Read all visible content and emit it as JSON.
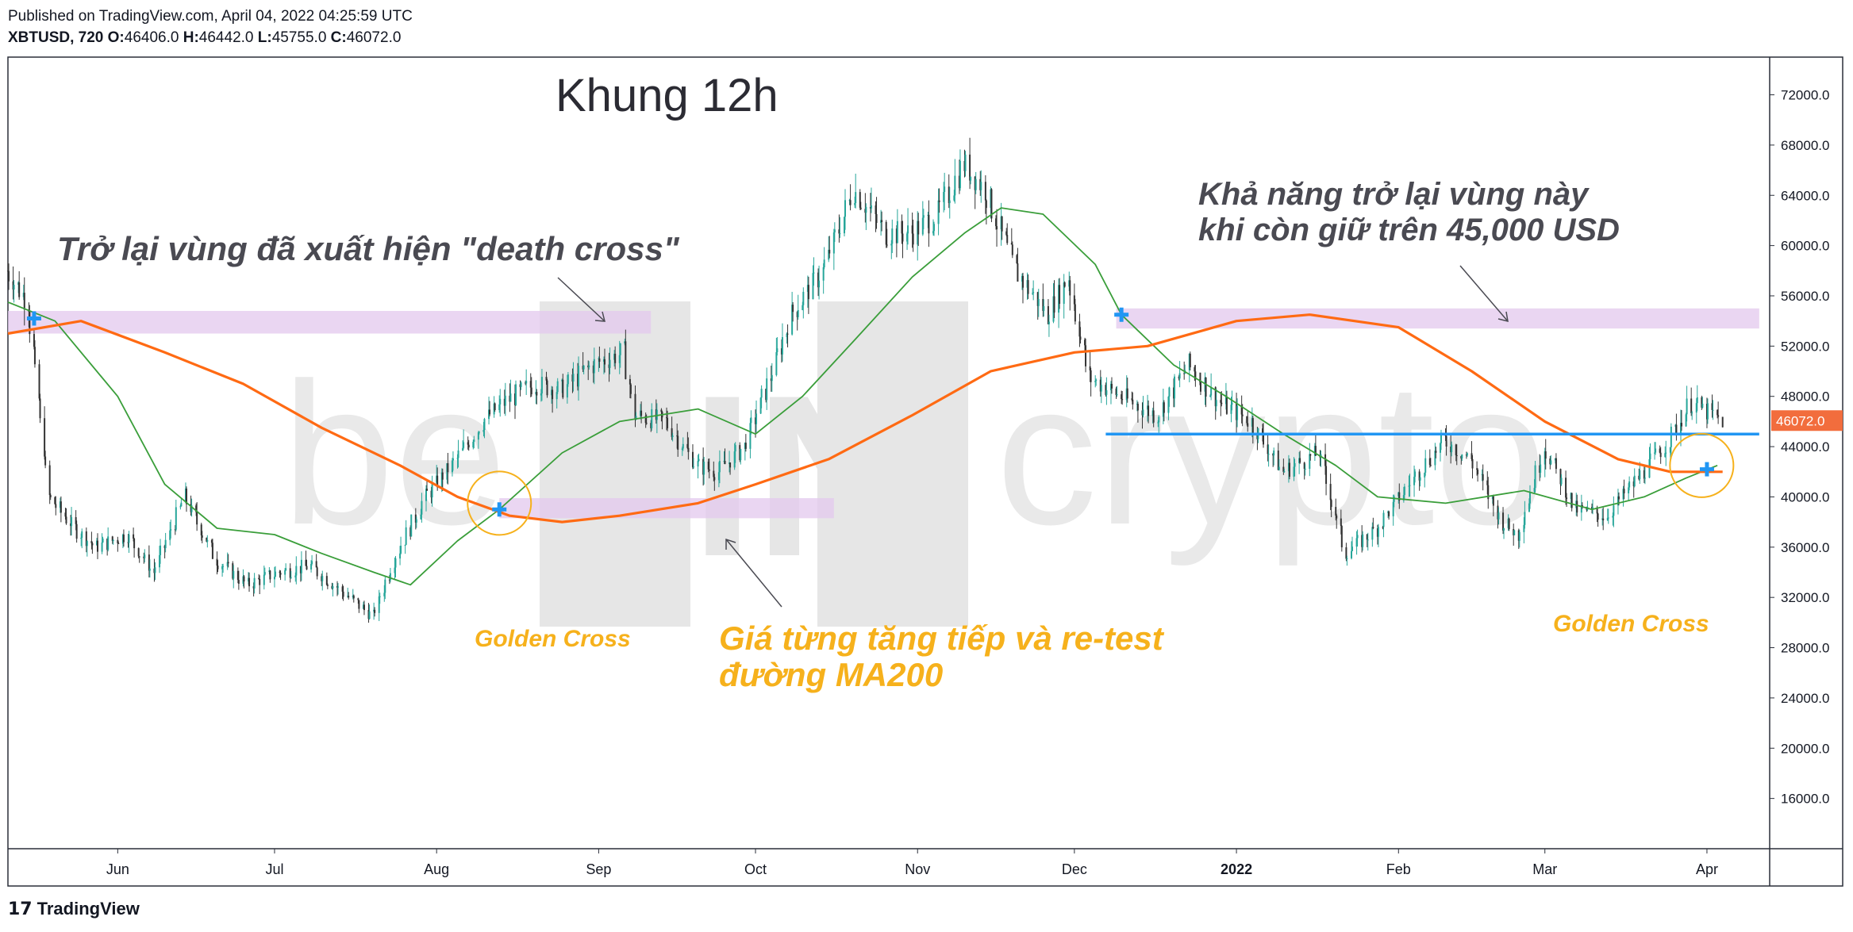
{
  "header": {
    "published": "Published on TradingView.com, April 04, 2022 04:25:59 UTC",
    "symbol": "XBTUSD, 720",
    "o_label": "O:",
    "o_value": "46406.0",
    "h_label": "H:",
    "h_value": "46442.0",
    "l_label": "L:",
    "l_value": "45755.0",
    "c_label": "C:",
    "c_value": "46072.0"
  },
  "footer": {
    "brand": "TradingView",
    "logo_icon": "tradingview-logo-icon"
  },
  "watermark": {
    "text_left": "be",
    "text_mid": "IN",
    "text_right": "crypto"
  },
  "colors": {
    "ma_fast": "#3a9e3a",
    "ma_slow": "#ff6a13",
    "level": "#2196f3",
    "zone": "#e3c8ee",
    "label_yellow": "#f6b11c",
    "up": "#26a69a",
    "down": "#333333",
    "price_badge": "#f26d3d",
    "marker": "#2196f3"
  },
  "annotations": {
    "timeframe": "Khung 12h",
    "death_cross_note": "Trở lại vùng đã xuất hiện \"death cross\"",
    "resistance_note_1": "Khả năng trở lại vùng này",
    "resistance_note_2": "khi còn giữ trên 45,000 USD",
    "retest_note_1": "Giá từng tăng tiếp và re-test",
    "retest_note_2": "đường MA200",
    "golden_cross_1": "Golden Cross",
    "golden_cross_2": "Golden Cross"
  },
  "last_price_badge": "46072.0",
  "chart_data": {
    "type": "line",
    "symbol": "XBTUSD",
    "interval": "720",
    "ylim": [
      12000,
      75000
    ],
    "yticks": [
      16000,
      20000,
      24000,
      28000,
      32000,
      36000,
      40000,
      44000,
      48000,
      52000,
      56000,
      60000,
      64000,
      68000,
      72000
    ],
    "ytick_labels": [
      "16000.0",
      "20000.0",
      "24000.0",
      "28000.0",
      "32000.0",
      "36000.0",
      "40000.0",
      "44000.0",
      "48000.0",
      "52000.0",
      "56000.0",
      "60000.0",
      "64000.0",
      "68000.0",
      "72000.0"
    ],
    "xlim": [
      "2021-05-11",
      "2022-04-13"
    ],
    "xticks": [
      "2021-06-01",
      "2021-07-01",
      "2021-08-01",
      "2021-09-01",
      "2021-10-01",
      "2021-11-01",
      "2021-12-01",
      "2022-01-01",
      "2022-02-01",
      "2022-03-01",
      "2022-04-01"
    ],
    "xtick_labels": [
      "Jun",
      "Jul",
      "Aug",
      "Sep",
      "Oct",
      "Nov",
      "Dec",
      "2022",
      "Feb",
      "Mar",
      "Apr"
    ],
    "series": [
      {
        "key": "price",
        "x": [
          "2021-05-11",
          "2021-05-15",
          "2021-05-19",
          "2021-05-24",
          "2021-05-28",
          "2021-06-03",
          "2021-06-08",
          "2021-06-14",
          "2021-06-20",
          "2021-06-26",
          "2021-07-02",
          "2021-07-08",
          "2021-07-14",
          "2021-07-20",
          "2021-07-24",
          "2021-07-30",
          "2021-08-05",
          "2021-08-10",
          "2021-08-14",
          "2021-08-20",
          "2021-08-25",
          "2021-08-31",
          "2021-09-06",
          "2021-09-08",
          "2021-09-14",
          "2021-09-20",
          "2021-09-24",
          "2021-09-29",
          "2021-10-04",
          "2021-10-08",
          "2021-10-14",
          "2021-10-20",
          "2021-10-26",
          "2021-10-31",
          "2021-11-05",
          "2021-11-10",
          "2021-11-14",
          "2021-11-20",
          "2021-11-26",
          "2021-11-30",
          "2021-12-04",
          "2021-12-10",
          "2021-12-17",
          "2021-12-23",
          "2021-12-29",
          "2022-01-04",
          "2022-01-10",
          "2022-01-17",
          "2022-01-22",
          "2022-01-28",
          "2022-02-05",
          "2022-02-10",
          "2022-02-15",
          "2022-02-21",
          "2022-02-24",
          "2022-03-01",
          "2022-03-07",
          "2022-03-13",
          "2022-03-19",
          "2022-03-25",
          "2022-03-29",
          "2022-04-04"
        ],
        "values": [
          58000,
          55500,
          40000,
          37500,
          36000,
          37000,
          34000,
          40000,
          35000,
          33000,
          34000,
          34500,
          32500,
          30500,
          35000,
          40000,
          43000,
          46000,
          47500,
          49000,
          48500,
          50500,
          51500,
          46500,
          46000,
          42500,
          42000,
          44000,
          49500,
          54500,
          58000,
          64500,
          61000,
          61000,
          62500,
          66500,
          64500,
          58000,
          54500,
          57500,
          49500,
          48000,
          46500,
          50500,
          47500,
          46000,
          42000,
          43500,
          35500,
          37500,
          42000,
          44500,
          43000,
          38000,
          37000,
          44000,
          39000,
          38500,
          41500,
          44500,
          47500,
          46072
        ]
      },
      {
        "key": "ma_fast",
        "x": [
          "2021-05-11",
          "2021-05-20",
          "2021-06-01",
          "2021-06-10",
          "2021-06-20",
          "2021-07-01",
          "2021-07-10",
          "2021-07-20",
          "2021-07-27",
          "2021-08-05",
          "2021-08-13",
          "2021-08-25",
          "2021-09-05",
          "2021-09-20",
          "2021-10-01",
          "2021-10-10",
          "2021-10-20",
          "2021-10-31",
          "2021-11-10",
          "2021-11-17",
          "2021-11-25",
          "2021-12-05",
          "2021-12-10",
          "2021-12-20",
          "2021-12-30",
          "2022-01-10",
          "2022-01-20",
          "2022-01-28",
          "2022-02-10",
          "2022-02-25",
          "2022-03-10",
          "2022-03-20",
          "2022-03-28",
          "2022-04-03"
        ],
        "values": [
          55500,
          54000,
          48000,
          41000,
          37500,
          37000,
          35500,
          34000,
          33000,
          36500,
          39000,
          43500,
          46000,
          47000,
          45000,
          48000,
          52500,
          57500,
          61000,
          63000,
          62500,
          58500,
          54500,
          50500,
          48000,
          45000,
          42500,
          40000,
          39500,
          40500,
          39000,
          40000,
          41500,
          42500
        ]
      },
      {
        "key": "ma_slow",
        "x": [
          "2021-05-11",
          "2021-05-25",
          "2021-06-10",
          "2021-06-25",
          "2021-07-10",
          "2021-07-25",
          "2021-08-05",
          "2021-08-15",
          "2021-08-25",
          "2021-09-05",
          "2021-09-20",
          "2021-10-01",
          "2021-10-15",
          "2021-10-31",
          "2021-11-15",
          "2021-12-01",
          "2021-12-15",
          "2022-01-01",
          "2022-01-15",
          "2022-02-01",
          "2022-02-15",
          "2022-03-01",
          "2022-03-15",
          "2022-03-25",
          "2022-04-04"
        ],
        "values": [
          53000,
          54000,
          51500,
          49000,
          45500,
          42500,
          40000,
          38500,
          38000,
          38500,
          39500,
          41000,
          43000,
          46500,
          50000,
          51500,
          52000,
          54000,
          54500,
          53500,
          50000,
          46000,
          43000,
          42000,
          42000
        ]
      }
    ],
    "markers": [
      {
        "x": "2021-05-16",
        "y": 54200
      },
      {
        "x": "2021-08-13",
        "y": 39000
      },
      {
        "x": "2021-12-10",
        "y": 54500
      },
      {
        "x": "2022-04-01",
        "y": 42200
      }
    ],
    "zones": [
      {
        "x0": "2021-05-11",
        "x1": "2021-09-11",
        "y0": 53000,
        "y1": 54800
      },
      {
        "x0": "2021-08-13",
        "x1": "2021-10-16",
        "y0": 38300,
        "y1": 39900
      },
      {
        "x0": "2021-12-09",
        "x1": "2022-04-11",
        "y0": 53400,
        "y1": 55000
      }
    ],
    "hlines": [
      {
        "x0": "2021-12-07",
        "x1": "2022-04-11",
        "y": 45000
      }
    ],
    "circles": [
      {
        "x": "2021-08-13",
        "y": 39500
      },
      {
        "x": "2022-03-31",
        "y": 42500
      }
    ]
  }
}
